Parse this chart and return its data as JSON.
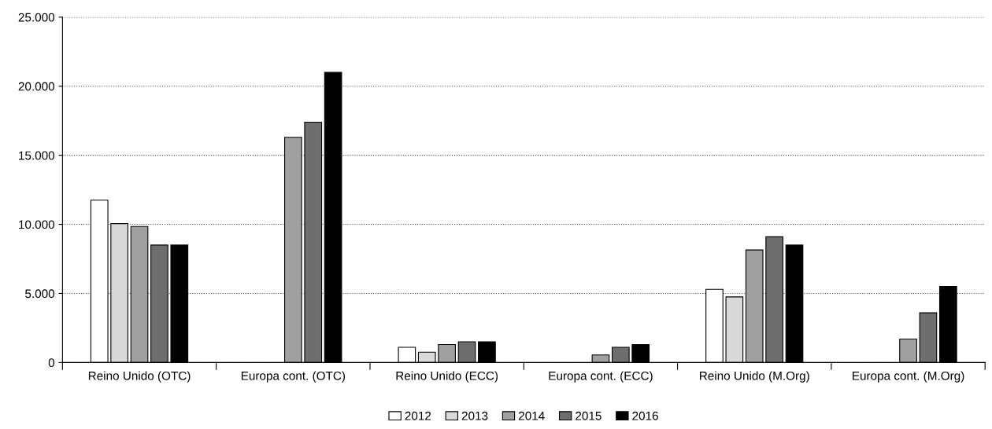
{
  "chart_data": {
    "type": "bar",
    "categories": [
      "Reino Unido (OTC)",
      "Europa cont. (OTC)",
      "Reino Unido (ECC)",
      "Europa cont. (ECC)",
      "Reino Unido (M.Org)",
      "Europa cont. (M.Org)"
    ],
    "series": [
      {
        "name": "2012",
        "color": "#ffffff",
        "values": [
          11750,
          null,
          1100,
          null,
          5300,
          null
        ]
      },
      {
        "name": "2013",
        "color": "#d9d9d9",
        "values": [
          10050,
          null,
          750,
          null,
          4750,
          null
        ]
      },
      {
        "name": "2014",
        "color": "#a0a0a0",
        "values": [
          9850,
          16300,
          1300,
          550,
          8150,
          1700
        ]
      },
      {
        "name": "2015",
        "color": "#6e6e6e",
        "values": [
          8500,
          17400,
          1500,
          1100,
          9100,
          3600
        ]
      },
      {
        "name": "2016",
        "color": "#000000",
        "values": [
          8500,
          21000,
          1500,
          1300,
          8500,
          5500
        ]
      }
    ],
    "ylim": [
      0,
      25000
    ],
    "yticks": [
      0,
      {
        "value": 5000,
        "label": "5.000"
      },
      {
        "value": 10000,
        "label": "10.000"
      },
      {
        "value": 15000,
        "label": "15.000"
      },
      {
        "value": 20000,
        "label": "20.000"
      },
      {
        "value": 25000,
        "label": "25.000"
      }
    ],
    "grid": "y",
    "legend": "bottom"
  }
}
